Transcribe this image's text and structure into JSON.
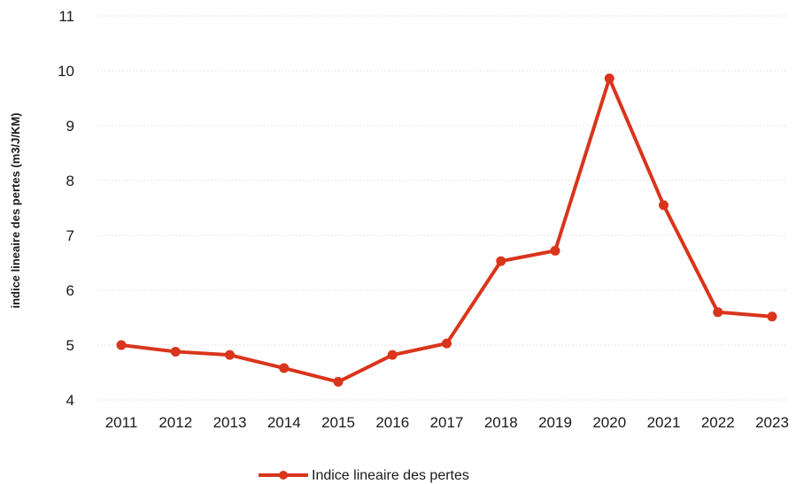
{
  "chart_data": {
    "type": "line",
    "title": "",
    "xlabel": "",
    "ylabel": "indice lineaire des pertes (m3/J/KM)",
    "ylim": [
      4,
      11
    ],
    "yticks": [
      4,
      5,
      6,
      7,
      8,
      9,
      10,
      11
    ],
    "grid": true,
    "legend_position": "bottom-center",
    "categories": [
      "2011",
      "2012",
      "2013",
      "2014",
      "2015",
      "2016",
      "2017",
      "2018",
      "2019",
      "2020",
      "2021",
      "2022",
      "2023"
    ],
    "series": [
      {
        "name": "Indice lineaire des pertes",
        "color": "#d9351c",
        "values": [
          5.0,
          4.88,
          4.82,
          4.58,
          4.33,
          4.82,
          5.03,
          6.53,
          6.72,
          9.86,
          7.55,
          5.6,
          5.52
        ]
      }
    ]
  }
}
